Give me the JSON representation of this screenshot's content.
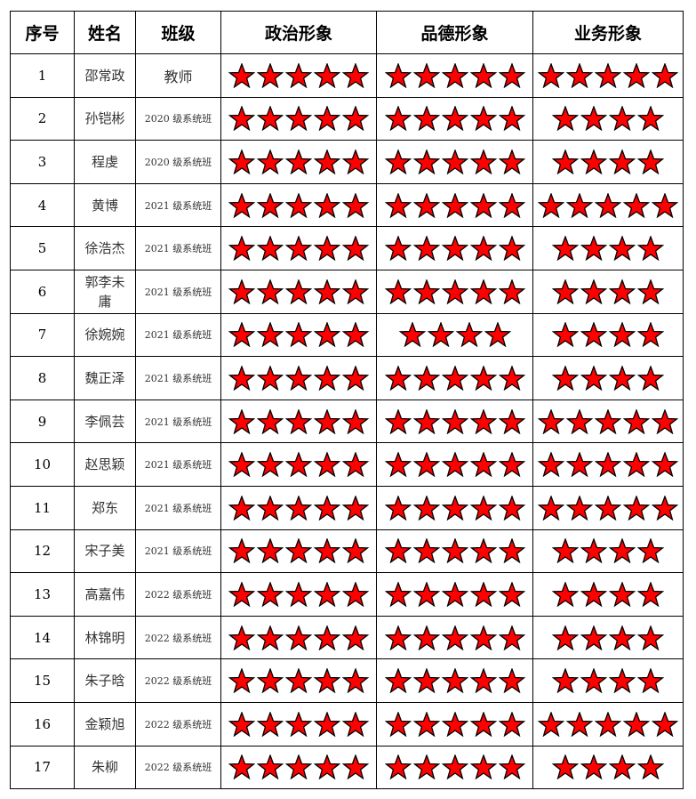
{
  "headers": [
    "序号",
    "姓名",
    "班级",
    "政治形象",
    "品德形象",
    "业务形象"
  ],
  "star_color": "#ff0000",
  "rows": [
    {
      "no": "1",
      "name": "邵常政",
      "class": "教师",
      "stars": [
        5,
        5,
        5
      ]
    },
    {
      "no": "2",
      "name": "孙铠彬",
      "class": "2020 级系统班",
      "stars": [
        5,
        5,
        4
      ]
    },
    {
      "no": "3",
      "name": "程虔",
      "class": "2020 级系统班",
      "stars": [
        5,
        5,
        4
      ]
    },
    {
      "no": "4",
      "name": "黄博",
      "class": "2021 级系统班",
      "stars": [
        5,
        5,
        5
      ]
    },
    {
      "no": "5",
      "name": "徐浩杰",
      "class": "2021 级系统班",
      "stars": [
        5,
        5,
        4
      ]
    },
    {
      "no": "6",
      "name": "郭李未庸",
      "class": "2021 级系统班",
      "stars": [
        5,
        5,
        4
      ]
    },
    {
      "no": "7",
      "name": "徐婉婉",
      "class": "2021 级系统班",
      "stars": [
        5,
        4,
        4
      ]
    },
    {
      "no": "8",
      "name": "魏正泽",
      "class": "2021 级系统班",
      "stars": [
        5,
        5,
        4
      ]
    },
    {
      "no": "9",
      "name": "李佩芸",
      "class": "2021 级系统班",
      "stars": [
        5,
        5,
        5
      ]
    },
    {
      "no": "10",
      "name": "赵思颖",
      "class": "2021 级系统班",
      "stars": [
        5,
        5,
        5
      ]
    },
    {
      "no": "11",
      "name": "郑东",
      "class": "2021 级系统班",
      "stars": [
        5,
        5,
        5
      ]
    },
    {
      "no": "12",
      "name": "宋子美",
      "class": "2021 级系统班",
      "stars": [
        5,
        5,
        4
      ]
    },
    {
      "no": "13",
      "name": "高嘉伟",
      "class": "2022 级系统班",
      "stars": [
        5,
        5,
        4
      ]
    },
    {
      "no": "14",
      "name": "林锦明",
      "class": "2022 级系统班",
      "stars": [
        5,
        5,
        4
      ]
    },
    {
      "no": "15",
      "name": "朱子晗",
      "class": "2022 级系统班",
      "stars": [
        5,
        5,
        4
      ]
    },
    {
      "no": "16",
      "name": "金颖旭",
      "class": "2022 级系统班",
      "stars": [
        5,
        5,
        5
      ]
    },
    {
      "no": "17",
      "name": "朱柳",
      "class": "2022 级系统班",
      "stars": [
        5,
        5,
        4
      ]
    }
  ]
}
